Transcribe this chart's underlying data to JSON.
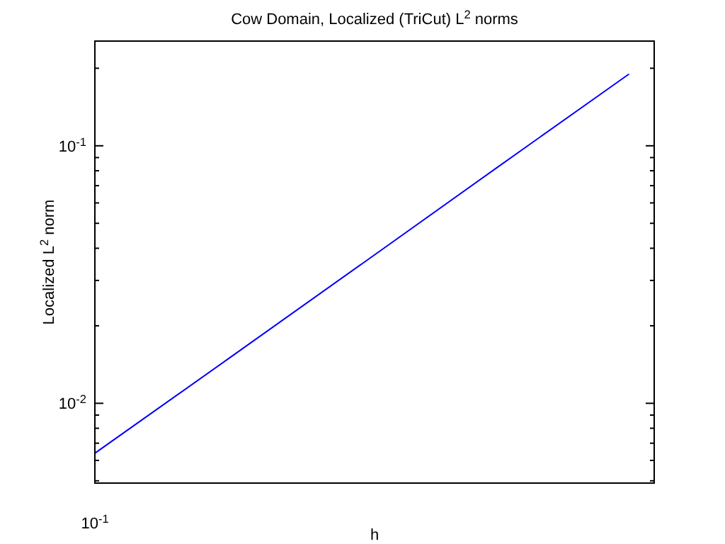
{
  "chart_data": {
    "type": "line",
    "title": "Cow Domain, Localized (TriCut) L$^{2}$ norms",
    "xlabel": "h",
    "ylabel": "Localized L$^{2}$ norm",
    "log": "y",
    "grid": false,
    "marker": "none",
    "line_style": "solid",
    "categories": [
      null,
      null,
      null,
      null,
      null
    ],
    "annotations": [
      "10$^{-1}$"
    ],
    "series": [
      {
        "color": "#0000ff",
        "values": [
          0.0064,
          0.0149,
          0.0348,
          0.0815,
          0.19
        ]
      }
    ],
    "ylim": [
      0.0049,
      0.255
    ],
    "yticks": [
      {
        "value": 0.005,
        "label": null
      },
      {
        "value": 0.006,
        "label": null
      },
      {
        "value": 0.007,
        "label": null
      },
      {
        "value": 0.008,
        "label": null
      },
      {
        "value": 0.009,
        "label": null
      },
      {
        "value": 0.01,
        "label": "10$^{-2}$"
      },
      {
        "value": 0.02,
        "label": null
      },
      {
        "value": 0.03,
        "label": null
      },
      {
        "value": 0.04,
        "label": null
      },
      {
        "value": 0.05,
        "label": null
      },
      {
        "value": 0.06,
        "label": null
      },
      {
        "value": 0.07,
        "label": null
      },
      {
        "value": 0.08,
        "label": null
      },
      {
        "value": 0.09,
        "label": null
      },
      {
        "value": 0.1,
        "label": "10$^{-1}$"
      },
      {
        "value": 0.2,
        "label": null
      }
    ]
  }
}
